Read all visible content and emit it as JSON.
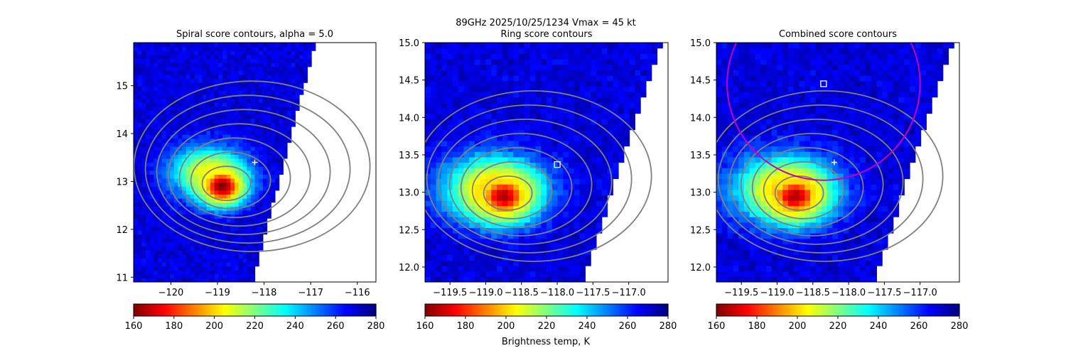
{
  "suptitle_line1": "89GHz  2025/10/25/1234    Vmax = 45 kt",
  "colorbar_label": "Brightness temp, K",
  "colors": {
    "contour": "#808080",
    "circle": "#c000c0",
    "marker": "#ffffff"
  },
  "chart_data": [
    {
      "type": "heatmap",
      "title": "Spiral score contours, alpha =  5.0",
      "xlim": [
        -120.8,
        -115.6
      ],
      "ylim": [
        10.9,
        15.9
      ],
      "xticks": [
        -120,
        -119,
        -118,
        -117,
        -116
      ],
      "yticks": [
        11,
        12,
        13,
        14,
        15
      ],
      "xtick_labels": [
        "−120",
        "−119",
        "−118",
        "−117",
        "−116"
      ],
      "ytick_labels": [
        "11",
        "12",
        "13",
        "14",
        "15"
      ],
      "swath_edge": [
        [
          -118.25,
          10.9
        ],
        [
          -116.9,
          15.9
        ]
      ],
      "hotspots": [
        {
          "x": -118.9,
          "y": 12.9,
          "rx": 0.55,
          "ry": 0.45,
          "tb": 160
        },
        {
          "x": -119.2,
          "y": 13.2,
          "rx": 0.9,
          "ry": 0.6,
          "tb": 205
        }
      ],
      "center_marker": {
        "x": -118.2,
        "y": 13.4
      },
      "colorbar": {
        "vmin": 160,
        "vmax": 280,
        "ticks": [
          160,
          180,
          200,
          220,
          240,
          260,
          280
        ],
        "cmap": "jet_r"
      }
    },
    {
      "type": "heatmap",
      "title": "Ring score contours",
      "xlim": [
        -119.85,
        -116.45
      ],
      "ylim": [
        11.8,
        15.0
      ],
      "xticks": [
        -119.5,
        -119.0,
        -118.5,
        -118.0,
        -117.5,
        -117.0
      ],
      "yticks": [
        12.0,
        12.5,
        13.0,
        13.5,
        14.0,
        14.5,
        15.0
      ],
      "xtick_labels": [
        "−119.5",
        "−119.0",
        "−118.5",
        "−118.0",
        "−117.5",
        "−117.0"
      ],
      "ytick_labels": [
        "12.0",
        "12.5",
        "13.0",
        "13.5",
        "14.0",
        "14.5",
        "15.0"
      ],
      "swath_edge": [
        [
          -117.65,
          11.8
        ],
        [
          -116.55,
          15.0
        ]
      ],
      "hotspots": [
        {
          "x": -118.75,
          "y": 12.95,
          "rx": 0.45,
          "ry": 0.35,
          "tb": 165
        },
        {
          "x": -118.9,
          "y": 13.05,
          "rx": 0.8,
          "ry": 0.5,
          "tb": 200
        }
      ],
      "max_marker": {
        "x": -118.0,
        "y": 13.37
      },
      "colorbar": {
        "vmin": 160,
        "vmax": 280,
        "ticks": [
          160,
          180,
          200,
          220,
          240,
          260,
          280
        ],
        "cmap": "jet_r"
      }
    },
    {
      "type": "heatmap",
      "title": "Combined score contours",
      "xlim": [
        -119.85,
        -116.45
      ],
      "ylim": [
        11.8,
        15.0
      ],
      "xticks": [
        -119.5,
        -119.0,
        -118.5,
        -118.0,
        -117.5,
        -117.0
      ],
      "yticks": [
        12.0,
        12.5,
        13.0,
        13.5,
        14.0,
        14.5,
        15.0
      ],
      "xtick_labels": [
        "−119.5",
        "−119.0",
        "−118.5",
        "−118.0",
        "−117.5",
        "−117.0"
      ],
      "ytick_labels": [
        "12.0",
        "12.5",
        "13.0",
        "13.5",
        "14.0",
        "14.5",
        "15.0"
      ],
      "swath_edge": [
        [
          -117.65,
          11.8
        ],
        [
          -116.55,
          15.0
        ]
      ],
      "hotspots": [
        {
          "x": -118.75,
          "y": 12.95,
          "rx": 0.45,
          "ry": 0.35,
          "tb": 165
        },
        {
          "x": -118.9,
          "y": 13.05,
          "rx": 0.8,
          "ry": 0.5,
          "tb": 200
        }
      ],
      "center_marker": {
        "x": -118.2,
        "y": 13.4
      },
      "max_marker": {
        "x": -118.35,
        "y": 14.45
      },
      "circle": {
        "x": -118.35,
        "y": 14.45,
        "r_deg": 1.35
      },
      "colorbar": {
        "vmin": 160,
        "vmax": 280,
        "ticks": [
          160,
          180,
          200,
          220,
          240,
          260,
          280
        ],
        "cmap": "jet_r"
      }
    }
  ]
}
